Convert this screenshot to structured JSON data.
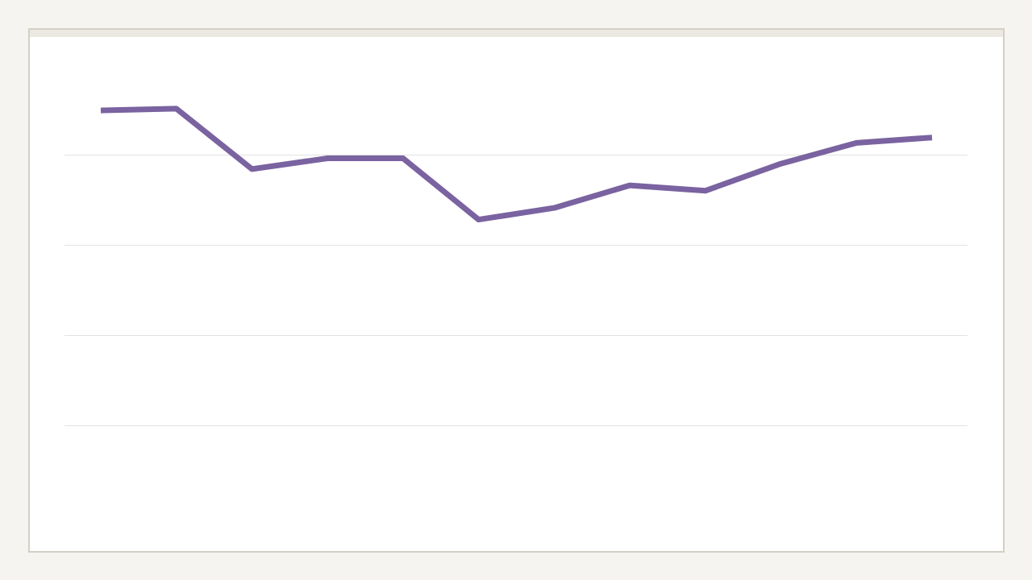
{
  "colors": {
    "page_background": "#f5f4f0",
    "card_background": "#ffffff",
    "card_border": "#d4cfc6",
    "card_topbar": "#ece9e2",
    "gridline": "#e2e2e2",
    "series_line": "#7a63a0"
  },
  "chart_data": {
    "type": "line",
    "title": "",
    "xlabel": "",
    "ylabel": "",
    "grid": true,
    "legend": "none",
    "ylim": [
      0,
      5
    ],
    "yticks": [
      1,
      2,
      3,
      4
    ],
    "x": [
      1,
      2,
      3,
      4,
      5,
      6,
      7,
      8,
      9,
      10,
      11,
      12
    ],
    "series": [
      {
        "values": [
          4.49,
          4.51,
          3.84,
          3.96,
          3.96,
          3.28,
          3.41,
          3.66,
          3.6,
          3.9,
          4.13,
          4.19
        ]
      }
    ]
  }
}
